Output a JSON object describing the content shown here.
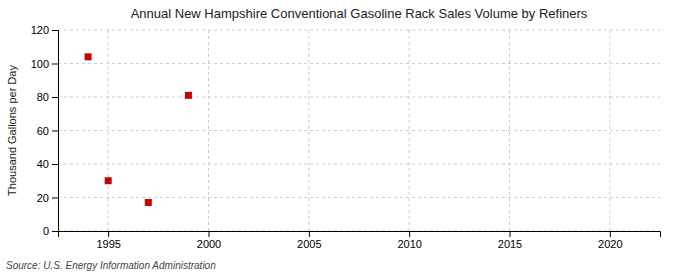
{
  "chart_data": {
    "type": "scatter",
    "title": "Annual New Hampshire Conventional Gasoline Rack Sales Volume by Refiners",
    "ylabel": "Thousand Gallons per Day",
    "annotations": [
      "Source: U.S. Energy Information Administration"
    ],
    "x": [
      1994,
      1995,
      1997,
      1999
    ],
    "values": [
      104,
      30,
      17,
      81
    ],
    "color": "#cc0000",
    "marker": "square",
    "xlim": [
      1992.5,
      2022.5
    ],
    "ylim": [
      0,
      120
    ],
    "xticks": [
      1995,
      2000,
      2005,
      2010,
      2015,
      2020
    ],
    "yticks": [
      0,
      20,
      40,
      60,
      80,
      100,
      120
    ],
    "grid": true
  }
}
